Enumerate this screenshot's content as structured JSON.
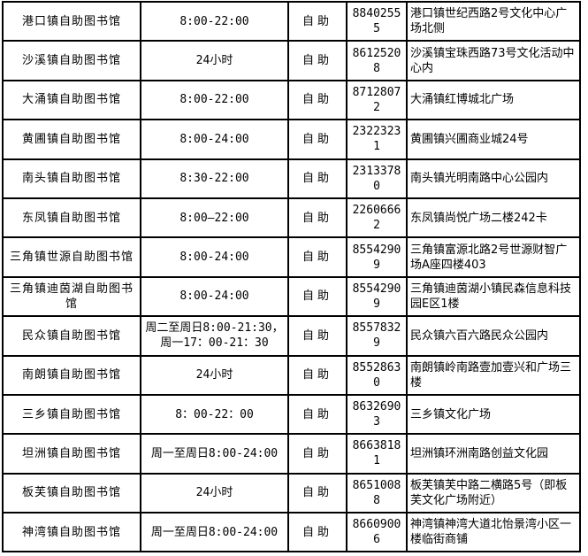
{
  "table": {
    "rows": [
      {
        "name": "港口镇自助图书馆",
        "hours": "8:00-22:00",
        "type": "自助",
        "phone": "88402555",
        "address": "港口镇世纪西路2号文化中心广场北侧"
      },
      {
        "name": "沙溪镇自助图书馆",
        "hours": "24小时",
        "type": "自助",
        "phone": "86125208",
        "address": "沙溪镇宝珠西路73号文化活动中心内"
      },
      {
        "name": "大涌镇自助图书馆",
        "hours": "8:00-22:00",
        "type": "自助",
        "phone": "87128072",
        "address": "大涌镇红博城北广场"
      },
      {
        "name": "黄圃镇自助图书馆",
        "hours": "8:00-24:00",
        "type": "自助",
        "phone": "23223231",
        "address": "黄圃镇兴圃商业城24号"
      },
      {
        "name": "南头镇自助图书馆",
        "hours": "8:30-22:00",
        "type": "自助",
        "phone": "23133780",
        "address": "南头镇光明南路中心公园内"
      },
      {
        "name": "东凤镇自助图书馆",
        "hours": "8:00—22:00",
        "type": "自助",
        "phone": "22606662",
        "address": "东凤镇尚悦广场二楼242卡"
      },
      {
        "name": "三角镇世源自助图书馆",
        "hours": "8:00-24:00",
        "type": "自助",
        "phone": "85542909",
        "address": "三角镇富源北路2号世源财智广场A座四楼403"
      },
      {
        "name": "三角镇迪茵湖自助图书馆",
        "hours": "8:00-24:00",
        "type": "自助",
        "phone": "85542909",
        "address": "三角镇迪茵湖小镇民森信息科技园E区1楼"
      },
      {
        "name": "民众镇自助图书馆",
        "hours": "周二至周日8:00-21:30，\n周一17：00-21：30",
        "type": "自助",
        "phone": "85578329",
        "address": "民众镇六百六路民众公园内"
      },
      {
        "name": "南朗镇自助图书馆",
        "hours": "24小时",
        "type": "自助",
        "phone": "85528630",
        "address": "南朗镇岭南路壹加壹兴和广场三楼"
      },
      {
        "name": "三乡镇自助图书馆",
        "hours": "8：00-22：00",
        "type": "自助",
        "phone": "86326903",
        "address": "三乡镇文化广场"
      },
      {
        "name": "坦洲镇自助图书馆",
        "hours": "周一至周日8:00-24:00",
        "type": "自助",
        "phone": "86638181",
        "address": "坦洲镇环洲南路创益文化园"
      },
      {
        "name": "板芙镇自助图书馆",
        "hours": "24小时",
        "type": "自助",
        "phone": "86510088",
        "address": "板芙镇芙中路二横路5号（即板芙文化广场附近）"
      },
      {
        "name": "神湾镇自助图书馆",
        "hours": "周一至周日8:00-24:00",
        "type": "自助",
        "phone": "86609006",
        "address": "神湾镇神湾大道北怡景湾小区一楼临街商铺"
      }
    ]
  }
}
